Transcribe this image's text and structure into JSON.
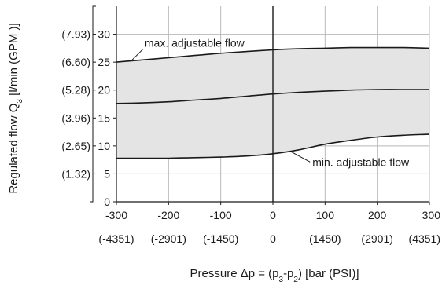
{
  "chart_data": {
    "type": "area",
    "title": "",
    "xlabel": "Pressure Δp = (p3-p2) [bar (PSI)]",
    "xlabel_parts": [
      "Pressure Δp = (p",
      "3",
      "-p",
      "2",
      ") [bar (PSI)]"
    ],
    "ylabel": "Regulated flow Q3 [l/min (GPM )]",
    "ylabel_parts": [
      "Regulated flow Q",
      "3",
      " [l/min (GPM )]"
    ],
    "xlim": [
      -300,
      300
    ],
    "ylim": [
      0,
      35
    ],
    "x_ticks": [
      -300,
      -200,
      -100,
      0,
      100,
      200,
      300
    ],
    "x_tick_labels": [
      "-300",
      "-200",
      "-100",
      "0",
      "100",
      "200",
      "300"
    ],
    "x_secondary_tick_labels": [
      "(-4351)",
      "(-2901)",
      "(-1450)",
      "0",
      "(1450)",
      "(2901)",
      "(4351)"
    ],
    "y_ticks": [
      0,
      5,
      10,
      15,
      20,
      25,
      30
    ],
    "y_tick_labels": [
      "0",
      "5",
      "10",
      "15",
      "20",
      "25",
      "30"
    ],
    "y_secondary_tick_labels": [
      "",
      "(1.32)",
      "(2.65)",
      "(3.96)",
      "(5.28)",
      "(6.60)",
      "(7.93)"
    ],
    "grid": true,
    "fill_color": "#e4e4e4",
    "line_color": "#1a1a1a",
    "grid_color": "#b8b8b8",
    "series": [
      {
        "name": "max. adjustable flow",
        "x": [
          -300,
          -250,
          -200,
          -150,
          -100,
          -50,
          0,
          50,
          100,
          150,
          200,
          250,
          300
        ],
        "y": [
          25.0,
          25.4,
          25.8,
          26.2,
          26.6,
          26.9,
          27.2,
          27.4,
          27.5,
          27.6,
          27.6,
          27.6,
          27.5
        ]
      },
      {
        "name": "",
        "x": [
          -300,
          -250,
          -200,
          -150,
          -100,
          -50,
          0,
          50,
          100,
          150,
          200,
          250,
          300
        ],
        "y": [
          17.6,
          17.7,
          17.9,
          18.2,
          18.5,
          18.9,
          19.3,
          19.6,
          19.8,
          20.0,
          20.1,
          20.1,
          20.1
        ]
      },
      {
        "name": "min. adjustable flow",
        "x": [
          -300,
          -250,
          -200,
          -150,
          -100,
          -50,
          0,
          50,
          100,
          150,
          200,
          250,
          300
        ],
        "y": [
          7.8,
          7.8,
          7.8,
          7.9,
          8.0,
          8.2,
          8.6,
          9.3,
          10.3,
          11.0,
          11.6,
          11.9,
          12.1
        ]
      }
    ],
    "annotations": [
      {
        "text": "max. adjustable flow",
        "series": 0,
        "at_x": -270
      },
      {
        "text": "min. adjustable flow",
        "series": 2,
        "at_x": 35
      }
    ]
  }
}
